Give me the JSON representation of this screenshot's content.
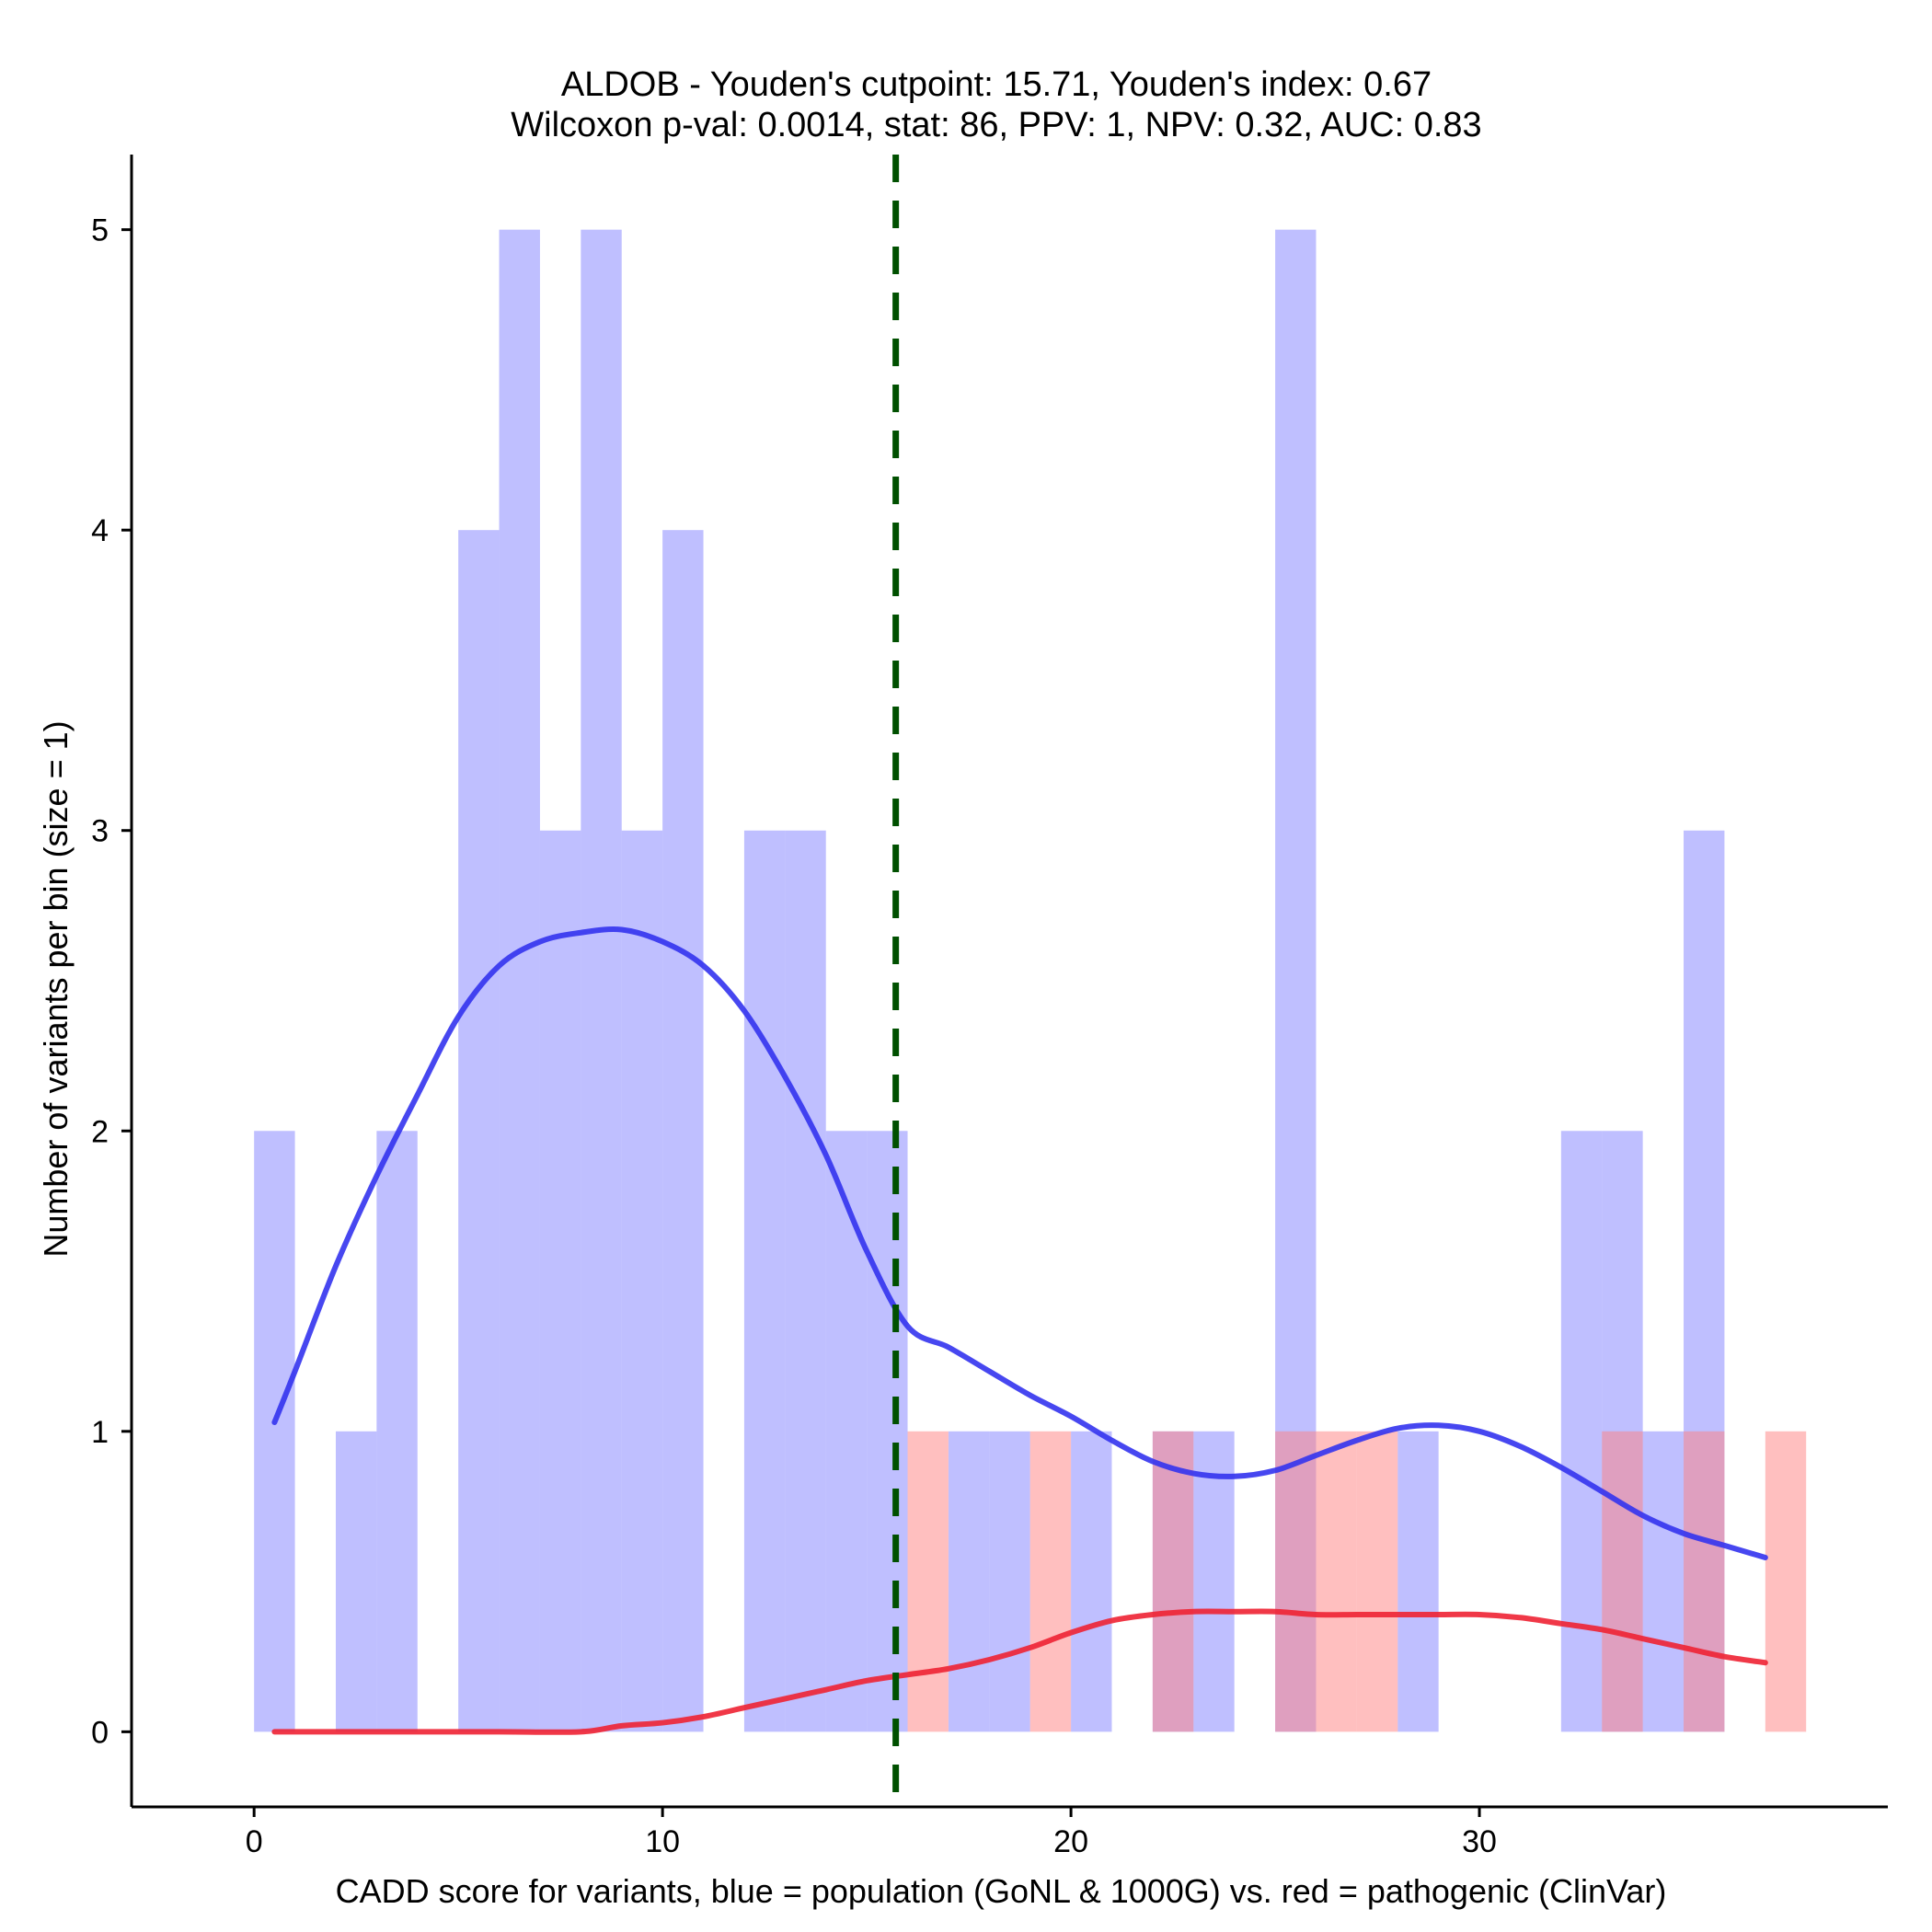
{
  "chart_data": {
    "type": "bar",
    "title": "ALDOB - Youden's cutpoint: 15.71, Youden's index: 0.67",
    "subtitle": "Wilcoxon p-val: 0.0014, stat: 86, PPV: 1, NPV: 0.32, AUC: 0.83",
    "xlabel": "CADD score for variants, blue = population (GoNL & 1000G) vs. red = pathogenic (ClinVar)",
    "ylabel": "Number of variants per bin (size = 1)",
    "xlim": [
      -3,
      40
    ],
    "ylim": [
      -0.25,
      5.25
    ],
    "xticks": [
      0,
      10,
      20,
      30
    ],
    "yticks": [
      0,
      1,
      2,
      3,
      4,
      5
    ],
    "bin_size": 1,
    "cutpoint": 15.71,
    "colors": {
      "population_bar": "#8080ff",
      "pathogenic_bar": "#ff8080",
      "population_line": "#3333ee",
      "pathogenic_line": "#ee2233",
      "cutpoint_line": "#005000"
    },
    "series": [
      {
        "name": "population (GoNL & 1000G)",
        "bins": [
          {
            "start": 0,
            "count": 2
          },
          {
            "start": 2,
            "count": 1
          },
          {
            "start": 3,
            "count": 2
          },
          {
            "start": 5,
            "count": 4
          },
          {
            "start": 6,
            "count": 5
          },
          {
            "start": 7,
            "count": 3
          },
          {
            "start": 8,
            "count": 5
          },
          {
            "start": 9,
            "count": 3
          },
          {
            "start": 10,
            "count": 4
          },
          {
            "start": 12,
            "count": 3
          },
          {
            "start": 13,
            "count": 3
          },
          {
            "start": 14,
            "count": 2
          },
          {
            "start": 15,
            "count": 2
          },
          {
            "start": 17,
            "count": 1
          },
          {
            "start": 18,
            "count": 1
          },
          {
            "start": 20,
            "count": 1
          },
          {
            "start": 22,
            "count": 1
          },
          {
            "start": 23,
            "count": 1
          },
          {
            "start": 25,
            "count": 5
          },
          {
            "start": 28,
            "count": 1
          },
          {
            "start": 32,
            "count": 2
          },
          {
            "start": 33,
            "count": 2
          },
          {
            "start": 34,
            "count": 1
          },
          {
            "start": 35,
            "count": 3
          }
        ],
        "density": [
          [
            0.5,
            1.03
          ],
          [
            1,
            1.2
          ],
          [
            2,
            1.55
          ],
          [
            3,
            1.85
          ],
          [
            4,
            2.12
          ],
          [
            5,
            2.38
          ],
          [
            6,
            2.55
          ],
          [
            7,
            2.63
          ],
          [
            8,
            2.66
          ],
          [
            9,
            2.67
          ],
          [
            10,
            2.63
          ],
          [
            11,
            2.55
          ],
          [
            12,
            2.4
          ],
          [
            13,
            2.18
          ],
          [
            14,
            1.92
          ],
          [
            15,
            1.6
          ],
          [
            16,
            1.35
          ],
          [
            17,
            1.28
          ],
          [
            18,
            1.2
          ],
          [
            19,
            1.12
          ],
          [
            20,
            1.05
          ],
          [
            21,
            0.97
          ],
          [
            22,
            0.9
          ],
          [
            23,
            0.86
          ],
          [
            24,
            0.85
          ],
          [
            25,
            0.87
          ],
          [
            26,
            0.92
          ],
          [
            27,
            0.97
          ],
          [
            28,
            1.01
          ],
          [
            29,
            1.02
          ],
          [
            30,
            1.0
          ],
          [
            31,
            0.95
          ],
          [
            32,
            0.88
          ],
          [
            33,
            0.8
          ],
          [
            34,
            0.72
          ],
          [
            35,
            0.66
          ],
          [
            36,
            0.62
          ],
          [
            37,
            0.58
          ]
        ]
      },
      {
        "name": "pathogenic (ClinVar)",
        "bins": [
          {
            "start": 16,
            "count": 1
          },
          {
            "start": 19,
            "count": 1
          },
          {
            "start": 22,
            "count": 1
          },
          {
            "start": 25,
            "count": 1
          },
          {
            "start": 26,
            "count": 1
          },
          {
            "start": 27,
            "count": 1
          },
          {
            "start": 33,
            "count": 1
          },
          {
            "start": 35,
            "count": 1
          },
          {
            "start": 37,
            "count": 1
          }
        ],
        "density": [
          [
            0.5,
            0.0
          ],
          [
            2,
            0.0
          ],
          [
            4,
            0.0
          ],
          [
            6,
            0.0
          ],
          [
            8,
            0.0
          ],
          [
            9,
            0.02
          ],
          [
            10,
            0.03
          ],
          [
            11,
            0.05
          ],
          [
            12,
            0.08
          ],
          [
            13,
            0.11
          ],
          [
            14,
            0.14
          ],
          [
            15,
            0.17
          ],
          [
            16,
            0.19
          ],
          [
            17,
            0.21
          ],
          [
            18,
            0.24
          ],
          [
            19,
            0.28
          ],
          [
            20,
            0.33
          ],
          [
            21,
            0.37
          ],
          [
            22,
            0.39
          ],
          [
            23,
            0.4
          ],
          [
            24,
            0.4
          ],
          [
            25,
            0.4
          ],
          [
            26,
            0.39
          ],
          [
            27,
            0.39
          ],
          [
            28,
            0.39
          ],
          [
            29,
            0.39
          ],
          [
            30,
            0.39
          ],
          [
            31,
            0.38
          ],
          [
            32,
            0.36
          ],
          [
            33,
            0.34
          ],
          [
            34,
            0.31
          ],
          [
            35,
            0.28
          ],
          [
            36,
            0.25
          ],
          [
            37,
            0.23
          ]
        ]
      }
    ]
  }
}
